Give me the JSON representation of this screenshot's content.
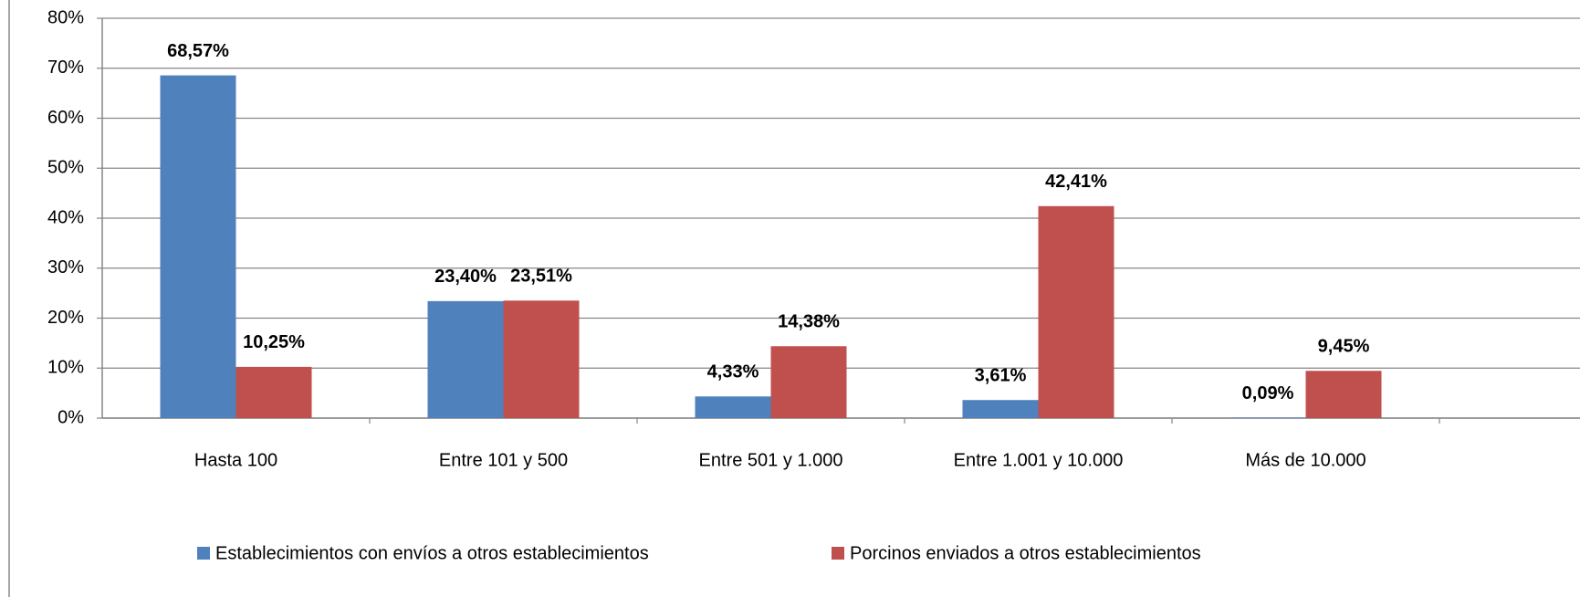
{
  "chart_data": {
    "type": "bar",
    "categories": [
      "Hasta 100",
      "Entre 101 y 500",
      "Entre 501 y 1.000",
      "Entre 1.001 y 10.000",
      "Más de 10.000"
    ],
    "series": [
      {
        "name": "Establecimientos con envíos a otros establecimientos",
        "color": "#4f81bd",
        "values": [
          68.57,
          23.4,
          4.33,
          3.61,
          0.09
        ],
        "value_labels": [
          "68,57%",
          "23,40%",
          "4,33%",
          "3,61%",
          "0,09%"
        ]
      },
      {
        "name": "Porcinos enviados a otros establecimientos",
        "color": "#c0504d",
        "values": [
          10.25,
          23.51,
          14.38,
          42.41,
          9.45
        ],
        "value_labels": [
          "10,25%",
          "23,51%",
          "14,38%",
          "42,41%",
          "9,45%"
        ]
      }
    ],
    "ylim": [
      0,
      80
    ],
    "yticks": [
      {
        "value": 0,
        "label": "0%"
      },
      {
        "value": 10,
        "label": "10%"
      },
      {
        "value": 20,
        "label": "20%"
      },
      {
        "value": 30,
        "label": "30%"
      },
      {
        "value": 40,
        "label": "40%"
      },
      {
        "value": 50,
        "label": "50%"
      },
      {
        "value": 60,
        "label": "60%"
      },
      {
        "value": 70,
        "label": "70%"
      },
      {
        "value": 80,
        "label": "80%"
      }
    ],
    "grid": true,
    "legend": "bottom"
  }
}
